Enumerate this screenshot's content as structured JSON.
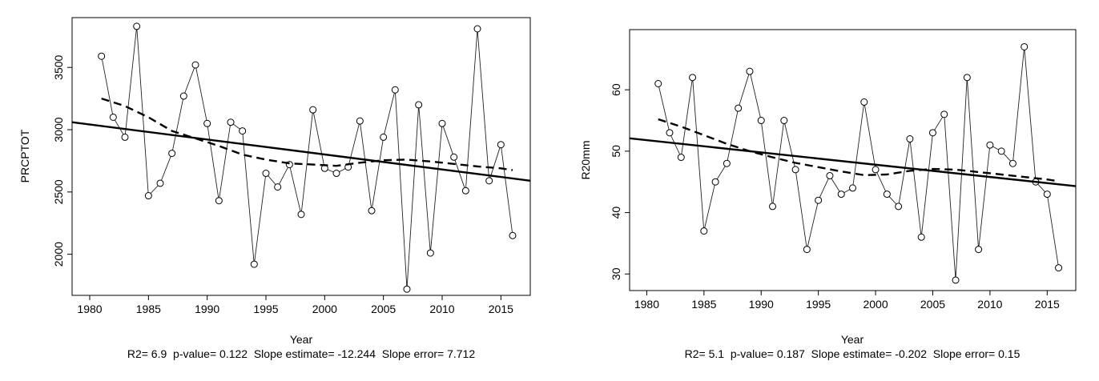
{
  "chart_data": [
    {
      "type": "line",
      "xlabel": "Year",
      "ylabel": "PRCPTOT",
      "caption": "R2= 6.9  p-value= 0.122  Slope estimate= -12.244  Slope error= 7.712",
      "xlim": [
        1978.5,
        2017.5
      ],
      "ylim": [
        1670,
        3900
      ],
      "xticks": [
        1980,
        1985,
        1990,
        1995,
        2000,
        2005,
        2010,
        2015
      ],
      "yticks": [
        2000,
        2500,
        3000,
        3500
      ],
      "grid": false,
      "series": [
        {
          "style": "solid-thin-with-circles",
          "x": [
            1981,
            1982,
            1983,
            1984,
            1985,
            1986,
            1987,
            1988,
            1989,
            1990,
            1991,
            1992,
            1993,
            1994,
            1995,
            1996,
            1997,
            1998,
            1999,
            2000,
            2001,
            2002,
            2003,
            2004,
            2005,
            2006,
            2007,
            2008,
            2009,
            2010,
            2011,
            2012,
            2013,
            2014,
            2015,
            2016
          ],
          "y": [
            3590,
            3100,
            2940,
            3830,
            2470,
            2570,
            2810,
            3270,
            3520,
            3050,
            2430,
            3060,
            2990,
            1920,
            2650,
            2540,
            2720,
            2320,
            3160,
            2690,
            2650,
            2700,
            3070,
            2350,
            2940,
            3320,
            1720,
            3200,
            2010,
            3050,
            2780,
            2510,
            3810,
            2590,
            2880,
            2150
          ]
        },
        {
          "style": "solid-thick-linear-trend",
          "x": [
            1978.5,
            2017.5
          ],
          "y": [
            3060,
            2590
          ]
        },
        {
          "style": "dashed-thick-smooth",
          "x": [
            1981,
            1983,
            1985,
            1987,
            1989,
            1991,
            1993,
            1995,
            1997,
            1999,
            2001,
            2003,
            2005,
            2007,
            2009,
            2011,
            2013,
            2015,
            2016
          ],
          "y": [
            3250,
            3190,
            3100,
            2990,
            2930,
            2870,
            2800,
            2760,
            2730,
            2720,
            2710,
            2735,
            2755,
            2760,
            2745,
            2725,
            2705,
            2690,
            2675
          ]
        }
      ]
    },
    {
      "type": "line",
      "xlabel": "Year",
      "ylabel": "R20mm",
      "caption": "R2= 5.1  p-value= 0.187  Slope estimate= -0.202  Slope error= 0.15",
      "xlim": [
        1978.5,
        2017.5
      ],
      "ylim": [
        27.3,
        69.8
      ],
      "xticks": [
        1980,
        1985,
        1990,
        1995,
        2000,
        2005,
        2010,
        2015
      ],
      "yticks": [
        30,
        40,
        50,
        60
      ],
      "grid": false,
      "series": [
        {
          "style": "solid-thin-with-circles",
          "x": [
            1981,
            1982,
            1983,
            1984,
            1985,
            1986,
            1987,
            1988,
            1989,
            1990,
            1991,
            1992,
            1993,
            1994,
            1995,
            1996,
            1997,
            1998,
            1999,
            2000,
            2001,
            2002,
            2003,
            2004,
            2005,
            2006,
            2007,
            2008,
            2009,
            2010,
            2011,
            2012,
            2013,
            2014,
            2015,
            2016
          ],
          "y": [
            61,
            53,
            49,
            62,
            37,
            45,
            48,
            57,
            63,
            55,
            41,
            55,
            47,
            34,
            42,
            46,
            43,
            44,
            58,
            47,
            43,
            41,
            52,
            36,
            53,
            56,
            29,
            62,
            34,
            51,
            50,
            48,
            67,
            45,
            43,
            31
          ]
        },
        {
          "style": "solid-thick-linear-trend",
          "x": [
            1978.5,
            2017.5
          ],
          "y": [
            52.1,
            44.3
          ]
        },
        {
          "style": "dashed-thick-smooth",
          "x": [
            1981,
            1983,
            1985,
            1987,
            1989,
            1991,
            1993,
            1995,
            1997,
            1999,
            2001,
            2003,
            2005,
            2007,
            2009,
            2011,
            2013,
            2015,
            2016
          ],
          "y": [
            55.2,
            54.0,
            52.6,
            51.2,
            50.0,
            49.0,
            48.1,
            47.4,
            46.7,
            46.1,
            46.2,
            46.8,
            47.1,
            47.0,
            46.6,
            46.2,
            45.8,
            45.4,
            45.1
          ]
        }
      ]
    }
  ]
}
